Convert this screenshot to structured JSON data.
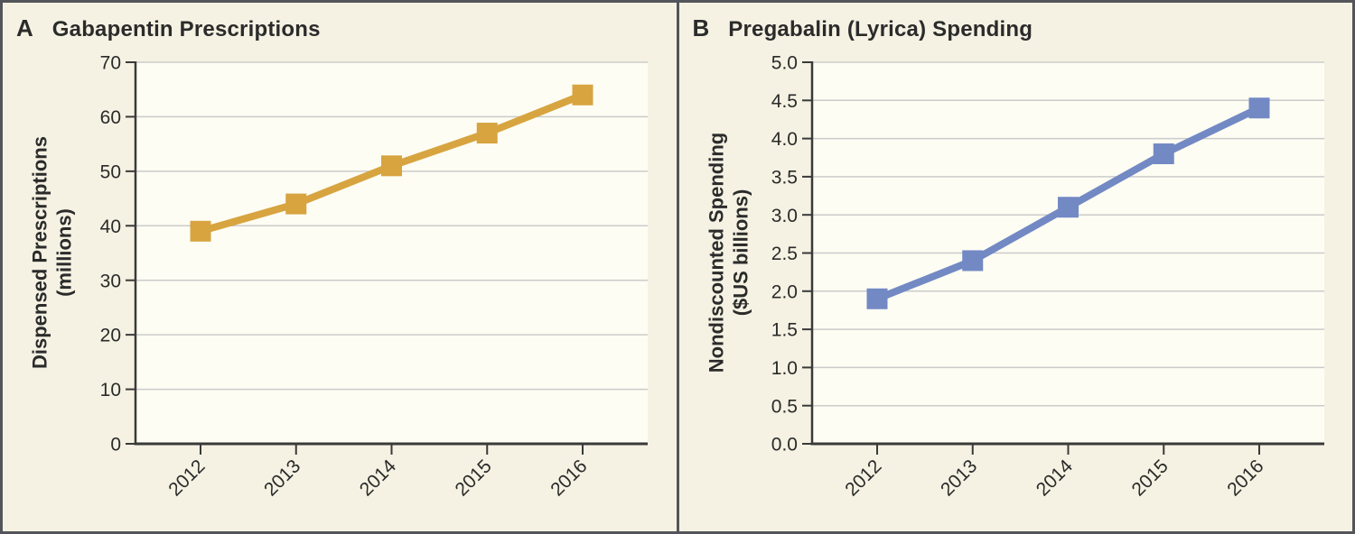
{
  "figure": {
    "background": "#f5f2e3",
    "plot_background": "#fdfdf3",
    "border_color": "#54555b",
    "grid_color": "#cbcbcb",
    "axis_color": "#3a3a3a",
    "text_color": "#2a2a2a"
  },
  "chart_data": [
    {
      "type": "line",
      "panel_label": "A",
      "title": "Gabapentin Prescriptions",
      "ylabel_line1": "Dispensed Prescriptions",
      "ylabel_line2": "(millions)",
      "x": [
        "2012",
        "2013",
        "2014",
        "2015",
        "2016"
      ],
      "values": [
        39,
        44,
        51,
        57,
        64
      ],
      "ylim": [
        0,
        70
      ],
      "ytick_step": 10,
      "ytick_labels": [
        "0",
        "10",
        "20",
        "30",
        "40",
        "50",
        "60",
        "70"
      ],
      "color": "#d7a440",
      "marker": "square",
      "grid": true,
      "legend": "none"
    },
    {
      "type": "line",
      "panel_label": "B",
      "title": "Pregabalin (Lyrica) Spending",
      "ylabel_line1": "Nondiscounted Spending",
      "ylabel_line2": "($US billions)",
      "x": [
        "2012",
        "2013",
        "2014",
        "2015",
        "2016"
      ],
      "values": [
        1.9,
        2.4,
        3.1,
        3.8,
        4.4
      ],
      "ylim": [
        0,
        5
      ],
      "ytick_step": 0.5,
      "ytick_labels": [
        "0.0",
        "0.5",
        "1.0",
        "1.5",
        "2.0",
        "2.5",
        "3.0",
        "3.5",
        "4.0",
        "4.5",
        "5.0"
      ],
      "color": "#7289c4",
      "marker": "square",
      "grid": true,
      "legend": "none"
    }
  ]
}
